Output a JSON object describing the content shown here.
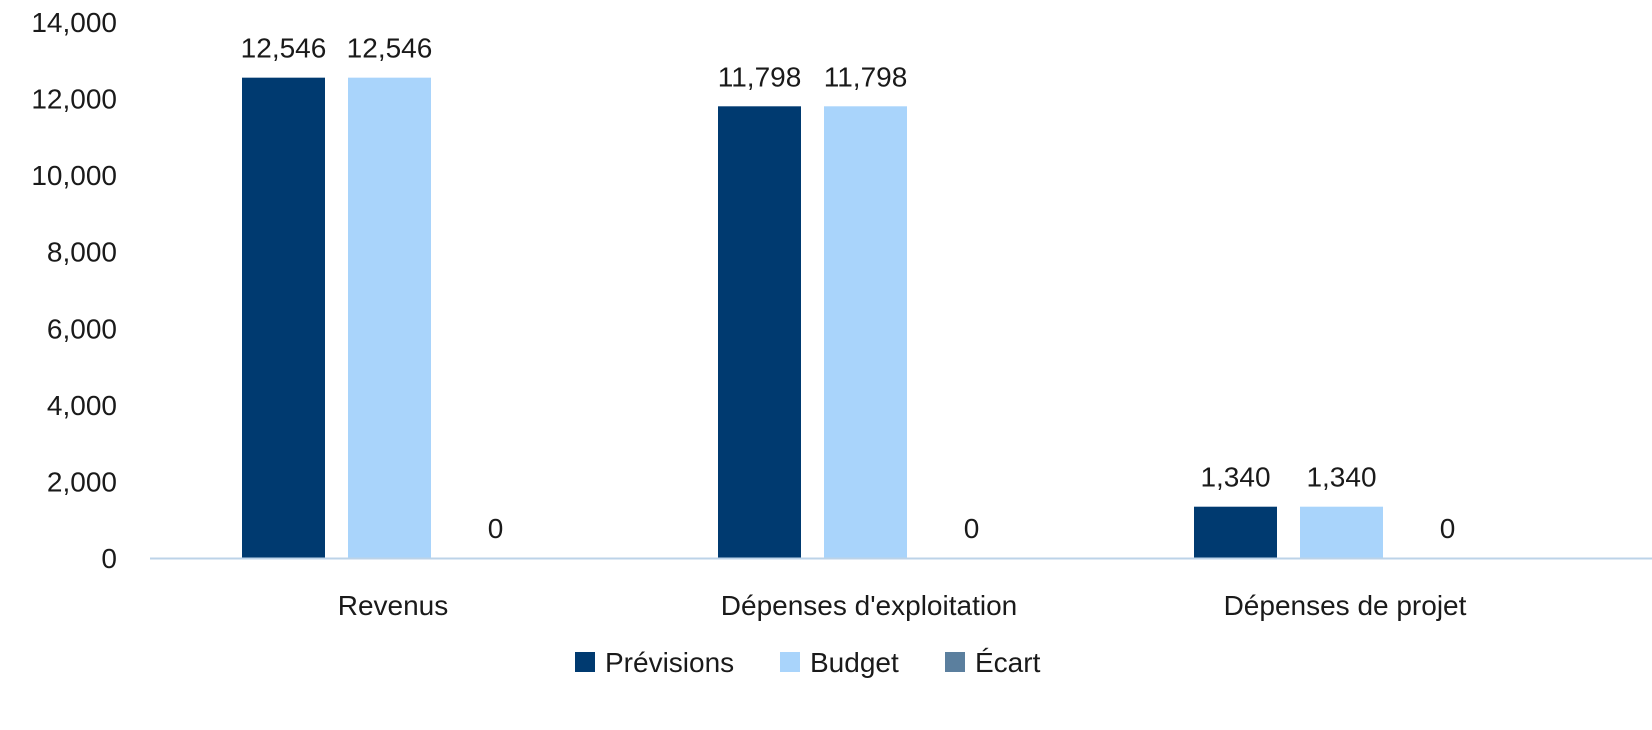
{
  "chart_data": {
    "type": "bar",
    "title": "",
    "xlabel": "",
    "ylabel": "",
    "categories": [
      "Revenus",
      "Dépenses d'exploitation",
      "Dépenses de projet"
    ],
    "series": [
      {
        "name": "Prévisions",
        "values": [
          12546,
          11798,
          1340
        ],
        "color": "#003a70"
      },
      {
        "name": "Budget",
        "values": [
          12546,
          11798,
          1340
        ],
        "color": "#a9d4fb"
      },
      {
        "name": "Écart",
        "values": [
          0,
          0,
          0
        ],
        "color": "#5b7f9e"
      }
    ],
    "data_labels": [
      [
        "12,546",
        "11,798",
        "1,340"
      ],
      [
        "12,546",
        "11,798",
        "1,340"
      ],
      [
        "0",
        "0",
        "0"
      ]
    ],
    "ylim": [
      0,
      14000
    ],
    "yticks": [
      0,
      2000,
      4000,
      6000,
      8000,
      10000,
      12000,
      14000
    ],
    "ytick_labels": [
      "0",
      "2,000",
      "4,000",
      "6,000",
      "8,000",
      "10,000",
      "12,000",
      "14,000"
    ],
    "grid": false,
    "legend": "bottom-center",
    "axis_color": "#bcd3e8"
  }
}
